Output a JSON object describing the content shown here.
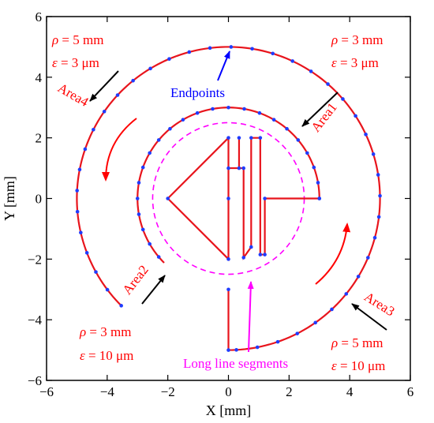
{
  "chart_data": {
    "type": "line",
    "xlabel": "X [mm]",
    "ylabel": "Y [mm]",
    "xlim": [
      -6,
      6
    ],
    "ylim": [
      -6,
      6
    ],
    "xticks": [
      -6,
      -4,
      -2,
      0,
      2,
      4,
      6
    ],
    "yticks": [
      -6,
      -4,
      -2,
      0,
      2,
      4,
      6
    ],
    "grid": false,
    "colors": {
      "path": "#e8141c",
      "endpoints": "#1f3cff",
      "circle": "#ff00ff",
      "text_red": "#ff0000",
      "text_blue": "#0000ff",
      "text_magenta": "#ff00ff",
      "arrow_black": "#000000"
    },
    "outer_arc": {
      "radius": 5,
      "start_angle_deg": 225,
      "end_angle_deg": -90,
      "direction": "clockwise"
    },
    "middle_arc": {
      "radius": 3,
      "start_angle_deg": 0,
      "end_angle_deg": 225,
      "direction": "counterclockwise"
    },
    "inner_circle": {
      "radius": 2.5,
      "center": [
        0,
        0
      ],
      "style": "dashed"
    },
    "polyline_inner": [
      [
        3,
        0
      ],
      [
        1.2,
        0
      ],
      [
        1.2,
        -1.85
      ],
      [
        1.05,
        -1.85
      ],
      [
        1.05,
        2.0
      ],
      [
        0.75,
        2.0
      ],
      [
        0.75,
        -1.6
      ],
      [
        0.5,
        -1.95
      ],
      [
        0.5,
        1.0
      ],
      [
        0.35,
        1.0
      ],
      [
        0.35,
        2.0
      ],
      [
        0.35,
        1.0
      ],
      [
        0,
        1.0
      ],
      [
        0,
        2.0
      ],
      [
        -2.0,
        0
      ],
      [
        0,
        -2.0
      ],
      [
        0,
        1.0
      ]
    ],
    "polyline_connector": [
      [
        0,
        -3
      ],
      [
        0,
        -5
      ]
    ],
    "endpoints": {
      "outer_arc_step_deg": 8,
      "middle_arc_step_deg": 10,
      "extra_points": [
        [
          0,
          1.0
        ],
        [
          0,
          2.0
        ],
        [
          -2.0,
          0
        ],
        [
          0,
          -2.0
        ],
        [
          0,
          0
        ],
        [
          0.35,
          1.0
        ],
        [
          0.35,
          2.0
        ],
        [
          0.5,
          1.0
        ],
        [
          0.5,
          -1.95
        ],
        [
          0.75,
          -1.6
        ],
        [
          0.75,
          2.0
        ],
        [
          1.05,
          2.0
        ],
        [
          1.05,
          -1.85
        ],
        [
          1.2,
          -1.85
        ],
        [
          1.2,
          0
        ],
        [
          3,
          0
        ],
        [
          0,
          -3
        ],
        [
          0,
          -5
        ]
      ]
    },
    "annotations": [
      {
        "id": "area4",
        "lines": [
          "ρ = 5 mm",
          "ε = 3 μm"
        ],
        "label": "Area4"
      },
      {
        "id": "area1",
        "lines": [
          "ρ = 3 mm",
          "ε = 3 μm"
        ],
        "label": "Area1"
      },
      {
        "id": "area2",
        "lines": [
          "ρ = 3 mm",
          "ε = 10 μm"
        ],
        "label": "Area2"
      },
      {
        "id": "area3",
        "lines": [
          "ρ = 5 mm",
          "ε = 10 μm"
        ],
        "label": "Area3"
      },
      {
        "id": "endpoints",
        "label": "Endpoints"
      },
      {
        "id": "long-lines",
        "label": "Long line segments"
      }
    ]
  },
  "text": {
    "area4_rho_sym": "ρ",
    "area4_rho_val": " = 5 mm",
    "area4_eps_sym": "ε",
    "area4_eps_val": " = 3 μm",
    "area4_label": "Area4",
    "area1_rho_sym": "ρ",
    "area1_rho_val": " = 3 mm",
    "area1_eps_sym": "ε",
    "area1_eps_val": " = 3 μm",
    "area1_label": "Area1",
    "area2_rho_sym": "ρ",
    "area2_rho_val": " = 3 mm",
    "area2_eps_sym": "ε",
    "area2_eps_val": " = 10 μm",
    "area2_label": "Area2",
    "area3_rho_sym": "ρ",
    "area3_rho_val": " = 5 mm",
    "area3_eps_sym": "ε",
    "area3_eps_val": " = 10 μm",
    "area3_label": "Area3",
    "endpoints_label": "Endpoints",
    "long_lines_label": "Long line segments"
  }
}
